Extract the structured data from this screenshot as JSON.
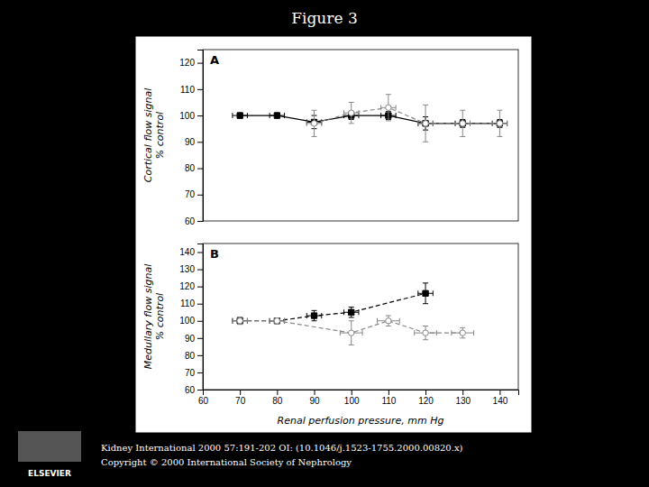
{
  "chart_data": [
    {
      "type": "line",
      "title": "Figure 3",
      "ylabel": "Cortical flow signal\n% control",
      "annotations": [
        "A"
      ],
      "xlim": [
        60,
        145
      ],
      "ylim": [
        60,
        125
      ],
      "yticks": [
        60,
        70,
        80,
        90,
        100,
        110,
        120
      ],
      "tick_labels": "y",
      "series": [
        {
          "color": "#000000",
          "marker": "square",
          "line_style": "solid",
          "x": [
            70,
            80,
            90,
            100,
            110,
            120,
            130,
            140
          ],
          "values": [
            100,
            100,
            97.5,
            100,
            100,
            97,
            97,
            97
          ],
          "y_errors": [
            1.0,
            1.0,
            2.5,
            1.5,
            1.5,
            2.5,
            1.5,
            1.5
          ],
          "x_errors": [
            2,
            2,
            2,
            2,
            2,
            2,
            2,
            2
          ]
        },
        {
          "color": "#888888",
          "marker": "circle",
          "line_style": "dashed",
          "x": [
            90,
            100,
            110,
            120,
            130,
            140
          ],
          "values": [
            97,
            101,
            103,
            97,
            97,
            97
          ],
          "y_errors": [
            5,
            4,
            5,
            7,
            5,
            5
          ],
          "x_errors": [
            2,
            2,
            2,
            2,
            2,
            2
          ]
        }
      ]
    },
    {
      "type": "line",
      "xlabel": "Renal perfusion pressure, mm Hg",
      "ylabel": "Medullary flow signal\n% control",
      "annotations": [
        "B",
        "Kidney International 2000 57:191-202 OI: (10.1046/j.1523-1755.2000.00820.x)",
        "Copyright © 2000 International Society of Nephrology",
        "ELSEVIER"
      ],
      "xlim": [
        60,
        145
      ],
      "xticks": [
        60,
        70,
        80,
        90,
        100,
        110,
        120,
        130,
        140
      ],
      "ylim": [
        60,
        145
      ],
      "yticks": [
        60,
        70,
        80,
        90,
        100,
        110,
        120,
        130,
        140
      ],
      "series": [
        {
          "color": "#000000",
          "marker": "square",
          "line_style": "dashed",
          "x": [
            70,
            80,
            90,
            100,
            120
          ],
          "values": [
            100,
            100,
            103,
            105,
            116
          ],
          "y_errors": [
            2.0,
            1.5,
            3.0,
            3.0,
            6.0
          ],
          "x_errors": [
            2,
            2,
            2,
            2,
            2
          ]
        },
        {
          "color": "#888888",
          "marker": "circle",
          "line_style": "dashed",
          "x": [
            70,
            80,
            100,
            110,
            120,
            130
          ],
          "values": [
            100,
            100,
            93,
            100,
            93,
            93
          ],
          "y_errors": [
            2.0,
            1.5,
            7.0,
            3.0,
            4.0,
            3.0
          ],
          "x_errors": [
            2,
            2,
            3,
            3,
            3,
            3
          ]
        }
      ]
    }
  ]
}
